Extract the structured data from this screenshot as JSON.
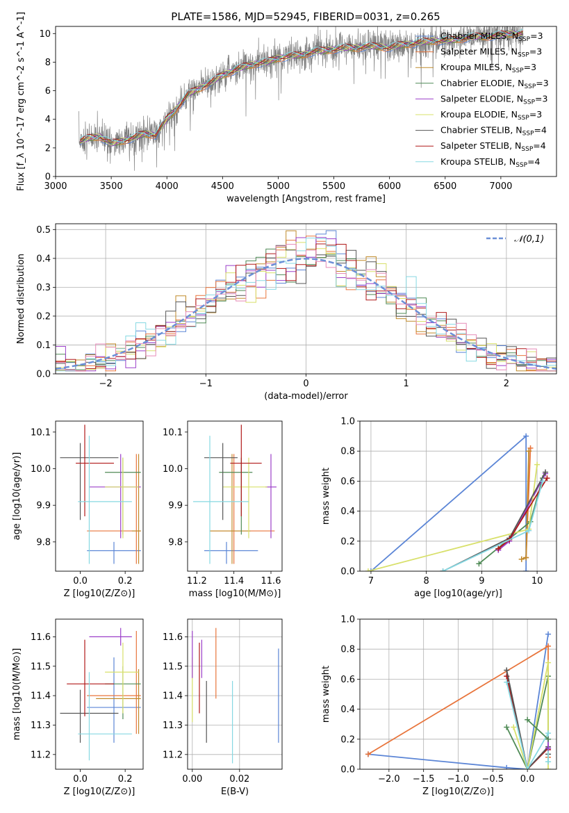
{
  "figure": {
    "title": "PLATE=1586, MJD=52945, FIBERID=0031, z=0.265"
  },
  "colors": {
    "Chabrier MILES": "#5b85d6",
    "Salpeter MILES": "#e8743b",
    "Kroupa MILES": "#c08a2a",
    "Chabrier ELODIE": "#4f8a55",
    "Salpeter ELODIE": "#9b3fc9",
    "Kroupa ELODIE": "#d8e06a",
    "Chabrier STELIB": "#555555",
    "Salpeter STELIB": "#b01818",
    "Kroupa STELIB": "#86d8e2",
    "Normal": "#6b8fd6",
    "Data": "#808080",
    "Pink": "#e68ab8"
  },
  "chart_data": [
    {
      "type": "line",
      "panel": "spectrum",
      "xlabel": "wavelength [Angstrom, rest frame]",
      "ylabel": "Flux [f_λ 10^-17 erg cm^-2 s^-1 A^-1]",
      "xlim": [
        3000,
        7500
      ],
      "ylim": [
        0,
        10.5
      ],
      "xticks": [
        3000,
        3500,
        4000,
        4500,
        5000,
        5500,
        6000,
        6500,
        7000
      ],
      "yticks": [
        0,
        2,
        4,
        6,
        8,
        10
      ],
      "legend": [
        "Chabrier MILES, N_SSP=3",
        "Salpeter MILES, N_SSP=3",
        "Kroupa MILES, N_SSP=3",
        "Chabrier ELODIE, N_SSP=3",
        "Salpeter ELODIE, N_SSP=3",
        "Kroupa ELODIE, N_SSP=3",
        "Chabrier STELIB, N_SSP=4",
        "Salpeter STELIB, N_SSP=4",
        "Kroupa STELIB, N_SSP=4"
      ],
      "legend_names": [
        "Chabrier MILES",
        "Salpeter MILES",
        "Kroupa MILES",
        "Chabrier ELODIE",
        "Salpeter ELODIE",
        "Kroupa ELODIE",
        "Chabrier STELIB",
        "Salpeter STELIB",
        "Kroupa STELIB"
      ],
      "legend_nssp": [
        "3",
        "3",
        "3",
        "3",
        "3",
        "3",
        "4",
        "4",
        "4"
      ],
      "legend_placement": "top-right",
      "continuum": {
        "x": [
          3200,
          3300,
          3400,
          3500,
          3600,
          3700,
          3800,
          3900,
          4000,
          4100,
          4200,
          4300,
          4400,
          4500,
          4600,
          4700,
          4800,
          4900,
          5000,
          5100,
          5200,
          5300,
          5400,
          5500,
          5600,
          5700,
          5800,
          5900,
          6000,
          6100,
          6200,
          6300,
          6400,
          6500,
          6600,
          6700,
          6800,
          6900,
          7000,
          7100,
          7200
        ],
        "y": [
          2.4,
          2.7,
          2.8,
          2.3,
          2.5,
          2.7,
          3.0,
          2.9,
          4.0,
          4.9,
          5.8,
          6.2,
          6.6,
          7.1,
          7.4,
          7.7,
          7.9,
          8.0,
          8.3,
          8.4,
          8.5,
          8.7,
          8.8,
          8.9,
          9.0,
          9.0,
          9.1,
          9.1,
          9.0,
          9.2,
          9.3,
          9.4,
          9.5,
          9.5,
          9.6,
          9.7,
          9.8,
          9.8,
          9.9,
          10.0,
          10.0
        ]
      }
    },
    {
      "type": "line",
      "panel": "residual distribution",
      "xlabel": "(data-model)/error",
      "ylabel": "Normed distribution",
      "xlim": [
        -2.5,
        2.5
      ],
      "ylim": [
        0,
        0.52
      ],
      "xticks": [
        -2,
        -1,
        0,
        1,
        2
      ],
      "yticks": [
        0.0,
        0.1,
        0.2,
        0.3,
        0.4,
        0.5
      ],
      "legend": [
        "𝒩(0,1)"
      ],
      "legend_placement": "top-right",
      "grid": true
    },
    {
      "type": "scatter",
      "panel": "age vs Z",
      "xlabel": "Z [log10(Z/Z⊙)]",
      "ylabel": "age  [log10(age/yr)]",
      "xlim": [
        -0.11,
        0.28
      ],
      "ylim": [
        9.72,
        10.13
      ],
      "xticks": [
        0.0,
        0.2
      ],
      "yticks": [
        9.8,
        9.9,
        10.0,
        10.1
      ],
      "points": [
        {
          "model": "Chabrier MILES",
          "x": 0.15,
          "y": 9.776,
          "xlo": 0.03,
          "xhi": 0.27,
          "ylo": 9.74,
          "yhi": 9.8
        },
        {
          "model": "Salpeter MILES",
          "x": 0.25,
          "y": 9.83,
          "xlo": 0.03,
          "xhi": 0.27,
          "ylo": 9.74,
          "yhi": 10.04
        },
        {
          "model": "Kroupa MILES",
          "x": 0.26,
          "y": 9.83,
          "xlo": 0.23,
          "xhi": 0.27,
          "ylo": 9.74,
          "yhi": 10.04
        },
        {
          "model": "Chabrier ELODIE",
          "x": 0.19,
          "y": 9.99,
          "xlo": 0.11,
          "xhi": 0.27,
          "ylo": 9.82,
          "yhi": 10.03
        },
        {
          "model": "Salpeter ELODIE",
          "x": 0.18,
          "y": 9.95,
          "xlo": 0.04,
          "xhi": 0.27,
          "ylo": 9.81,
          "yhi": 10.04
        },
        {
          "model": "Kroupa ELODIE",
          "x": 0.19,
          "y": 9.95,
          "xlo": 0.11,
          "xhi": 0.26,
          "ylo": 9.81,
          "yhi": 10.03
        },
        {
          "model": "Chabrier STELIB",
          "x": 0.0,
          "y": 10.03,
          "xlo": -0.09,
          "xhi": 0.17,
          "ylo": 9.86,
          "yhi": 10.07
        },
        {
          "model": "Salpeter STELIB",
          "x": 0.02,
          "y": 10.015,
          "xlo": -0.02,
          "xhi": 0.15,
          "ylo": 9.87,
          "yhi": 10.12
        },
        {
          "model": "Kroupa STELIB",
          "x": 0.04,
          "y": 9.91,
          "xlo": -0.01,
          "xhi": 0.23,
          "ylo": 9.74,
          "yhi": 10.09
        }
      ]
    },
    {
      "type": "scatter",
      "panel": "age vs mass",
      "xlabel": "mass [log10(M/M⊙)]",
      "ylabel": "",
      "xlim": [
        11.15,
        11.66
      ],
      "ylim": [
        9.72,
        10.13
      ],
      "xticks": [
        11.2,
        11.4,
        11.6
      ],
      "yticks": [
        9.8,
        9.9,
        10.0,
        10.1
      ],
      "points": [
        {
          "model": "Chabrier MILES",
          "x": 11.36,
          "y": 9.776,
          "xlo": 11.24,
          "xhi": 11.53,
          "ylo": 9.74,
          "yhi": 9.8
        },
        {
          "model": "Salpeter MILES",
          "x": 11.4,
          "y": 9.83,
          "xlo": 11.27,
          "xhi": 11.62,
          "ylo": 9.74,
          "yhi": 10.04
        },
        {
          "model": "Kroupa MILES",
          "x": 11.39,
          "y": 9.83,
          "xlo": 11.27,
          "xhi": 11.49,
          "ylo": 9.74,
          "yhi": 10.04
        },
        {
          "model": "Chabrier ELODIE",
          "x": 11.44,
          "y": 9.99,
          "xlo": 11.32,
          "xhi": 11.5,
          "ylo": 9.82,
          "yhi": 10.03
        },
        {
          "model": "Salpeter ELODIE",
          "x": 11.6,
          "y": 9.95,
          "xlo": 11.57,
          "xhi": 11.63,
          "ylo": 9.81,
          "yhi": 10.04
        },
        {
          "model": "Kroupa ELODIE",
          "x": 11.48,
          "y": 9.95,
          "xlo": 11.34,
          "xhi": 11.58,
          "ylo": 9.81,
          "yhi": 10.03
        },
        {
          "model": "Chabrier STELIB",
          "x": 11.34,
          "y": 10.03,
          "xlo": 11.24,
          "xhi": 11.42,
          "ylo": 9.86,
          "yhi": 10.07
        },
        {
          "model": "Salpeter STELIB",
          "x": 11.44,
          "y": 10.015,
          "xlo": 11.38,
          "xhi": 11.55,
          "ylo": 9.87,
          "yhi": 10.12
        },
        {
          "model": "Kroupa STELIB",
          "x": 11.27,
          "y": 9.91,
          "xlo": 11.18,
          "xhi": 11.48,
          "ylo": 9.74,
          "yhi": 10.09
        }
      ]
    },
    {
      "type": "line",
      "panel": "mass weight vs age",
      "xlabel": "age  [log10(age/yr)]",
      "ylabel": "mass weight",
      "xlim": [
        6.8,
        10.35
      ],
      "ylim": [
        0,
        1.0
      ],
      "xticks": [
        7,
        8,
        9,
        10
      ],
      "yticks": [
        0.0,
        0.2,
        0.4,
        0.6,
        0.8,
        1.0
      ],
      "grid": true,
      "series": [
        {
          "name": "Chabrier MILES",
          "x": [
            7.0,
            9.8,
            9.8
          ],
          "y": [
            0.0,
            0.9,
            0.0
          ]
        },
        {
          "name": "Salpeter MILES",
          "x": [
            9.72,
            9.8,
            9.88
          ],
          "y": [
            0.08,
            0.09,
            0.82
          ]
        },
        {
          "name": "Kroupa MILES",
          "x": [
            9.72,
            9.8,
            9.85
          ],
          "y": [
            0.08,
            0.09,
            0.8
          ]
        },
        {
          "name": "Chabrier ELODIE",
          "x": [
            8.95,
            9.88,
            10.1
          ],
          "y": [
            0.05,
            0.33,
            0.62
          ]
        },
        {
          "name": "Salpeter ELODIE",
          "x": [
            9.3,
            9.5,
            10.15
          ],
          "y": [
            0.14,
            0.2,
            0.65
          ]
        },
        {
          "name": "Kroupa ELODIE",
          "x": [
            6.95,
            9.85,
            10.0
          ],
          "y": [
            0.0,
            0.28,
            0.71
          ]
        },
        {
          "name": "Chabrier STELIB",
          "x": [
            8.3,
            9.5,
            10.15
          ],
          "y": [
            0.0,
            0.22,
            0.66
          ]
        },
        {
          "name": "Salpeter STELIB",
          "x": [
            9.3,
            9.5,
            10.18
          ],
          "y": [
            0.15,
            0.21,
            0.62
          ]
        },
        {
          "name": "Kroupa STELIB",
          "x": [
            8.3,
            9.85,
            10.1
          ],
          "y": [
            0.0,
            0.27,
            0.6
          ]
        }
      ]
    },
    {
      "type": "scatter",
      "panel": "mass vs Z",
      "xlabel": "Z [log10(Z/Z⊙)]",
      "ylabel": "mass [log10(M/M⊙)]",
      "xlim": [
        -0.11,
        0.28
      ],
      "ylim": [
        11.15,
        11.66
      ],
      "xticks": [
        0.0,
        0.2
      ],
      "yticks": [
        11.2,
        11.3,
        11.4,
        11.5,
        11.6
      ],
      "points": [
        {
          "model": "Chabrier MILES",
          "x": 0.15,
          "y": 11.36,
          "xlo": 0.03,
          "xhi": 0.27,
          "ylo": 11.24,
          "yhi": 11.53
        },
        {
          "model": "Salpeter MILES",
          "x": 0.25,
          "y": 11.4,
          "xlo": 0.03,
          "xhi": 0.27,
          "ylo": 11.27,
          "yhi": 11.62
        },
        {
          "model": "Kroupa MILES",
          "x": 0.26,
          "y": 11.39,
          "xlo": 0.07,
          "xhi": 0.27,
          "ylo": 11.27,
          "yhi": 11.49
        },
        {
          "model": "Chabrier ELODIE",
          "x": 0.19,
          "y": 11.44,
          "xlo": 0.11,
          "xhi": 0.27,
          "ylo": 11.32,
          "yhi": 11.5
        },
        {
          "model": "Salpeter ELODIE",
          "x": 0.18,
          "y": 11.6,
          "xlo": 0.04,
          "xhi": 0.23,
          "ylo": 11.57,
          "yhi": 11.63
        },
        {
          "model": "Kroupa ELODIE",
          "x": 0.19,
          "y": 11.48,
          "xlo": 0.11,
          "xhi": 0.26,
          "ylo": 11.34,
          "yhi": 11.58
        },
        {
          "model": "Chabrier STELIB",
          "x": 0.0,
          "y": 11.34,
          "xlo": -0.09,
          "xhi": 0.17,
          "ylo": 11.24,
          "yhi": 11.42
        },
        {
          "model": "Salpeter STELIB",
          "x": 0.02,
          "y": 11.44,
          "xlo": -0.06,
          "xhi": 0.15,
          "ylo": 11.33,
          "yhi": 11.59
        },
        {
          "model": "Kroupa STELIB",
          "x": 0.04,
          "y": 11.27,
          "xlo": -0.01,
          "xhi": 0.23,
          "ylo": 11.18,
          "yhi": 11.48
        }
      ]
    },
    {
      "type": "scatter",
      "panel": "mass vs E(B-V)",
      "xlabel": "E(B-V)",
      "ylabel": "",
      "xlim": [
        -0.002,
        0.038
      ],
      "ylim": [
        11.15,
        11.66
      ],
      "xticks": [
        0.0,
        0.02
      ],
      "yticks": [
        11.2,
        11.3,
        11.4,
        11.5,
        11.6
      ],
      "grid": true,
      "points": [
        {
          "model": "Chabrier MILES",
          "x": 0.0365,
          "y": 11.36,
          "xlo": 0.0365,
          "xhi": 0.0365,
          "ylo": 11.24,
          "yhi": 11.56
        },
        {
          "model": "Salpeter MILES",
          "x": 0.01,
          "y": 11.5,
          "xlo": 0.01,
          "xhi": 0.01,
          "ylo": 11.39,
          "yhi": 11.63
        },
        {
          "model": "Kroupa ELODIE",
          "x": 0.0,
          "y": 11.43,
          "xlo": 0.0,
          "xhi": 0.0,
          "ylo": 11.31,
          "yhi": 11.53
        },
        {
          "model": "Salpeter ELODIE",
          "x": 0.0,
          "y": 11.55,
          "xlo": 0.0,
          "xhi": 0.0,
          "ylo": 11.46,
          "yhi": 11.62
        },
        {
          "model": "Salpeter STELIB",
          "x": 0.003,
          "y": 11.45,
          "xlo": 0.003,
          "xhi": 0.003,
          "ylo": 11.34,
          "yhi": 11.58
        },
        {
          "model": "Chabrier STELIB",
          "x": 0.006,
          "y": 11.35,
          "xlo": 0.006,
          "xhi": 0.006,
          "ylo": 11.24,
          "yhi": 11.45
        },
        {
          "model": "Kroupa STELIB",
          "x": 0.017,
          "y": 11.3,
          "xlo": 0.017,
          "xhi": 0.017,
          "ylo": 11.17,
          "yhi": 11.45
        },
        {
          "model": "Salpeter ELODIE",
          "x": 0.004,
          "y": 11.55,
          "xlo": 0.004,
          "xhi": 0.004,
          "ylo": 11.46,
          "yhi": 11.59
        }
      ]
    },
    {
      "type": "line",
      "panel": "mass weight vs Z",
      "xlabel": "Z [log10(Z/Z⊙)]",
      "ylabel": "mass weight",
      "xlim": [
        -2.42,
        0.42
      ],
      "ylim": [
        0,
        1.0
      ],
      "xticks": [
        -2.0,
        -1.5,
        -1.0,
        -0.5,
        0.0
      ],
      "yticks": [
        0.0,
        0.2,
        0.4,
        0.6,
        0.8,
        1.0
      ],
      "grid": true,
      "series": [
        {
          "name": "Chabrier MILES",
          "x": [
            -2.3,
            -0.3,
            0.0,
            0.0,
            0.3
          ],
          "y": [
            0.1,
            0.01,
            0.0,
            0.0,
            0.9
          ]
        },
        {
          "name": "Salpeter MILES",
          "x": [
            -2.3,
            0.3,
            0.3
          ],
          "y": [
            0.1,
            0.82,
            0.08
          ]
        },
        {
          "name": "Chabrier ELODIE",
          "x": [
            -0.3,
            0.0,
            0.3,
            0.3
          ],
          "y": [
            0.28,
            0.0,
            0.62,
            0.05
          ]
        },
        {
          "name": "Salpeter STELIB",
          "x": [
            -0.3,
            0.0,
            0.3,
            0.3
          ],
          "y": [
            0.62,
            0.0,
            0.14,
            0.13
          ]
        },
        {
          "name": "Chabrier STELIB",
          "x": [
            -0.3,
            0.0,
            0.3,
            0.3
          ],
          "y": [
            0.66,
            0.0,
            0.15,
            0.1
          ]
        },
        {
          "name": "Kroupa ELODIE",
          "x": [
            -0.2,
            0.0,
            0.3,
            0.3
          ],
          "y": [
            0.28,
            0.0,
            0.71,
            0.0
          ]
        },
        {
          "name": "Kroupa STELIB",
          "x": [
            -0.3,
            0.0,
            0.3,
            0.3
          ],
          "y": [
            0.58,
            0.0,
            0.24,
            0.05
          ]
        },
        {
          "name": "Salpeter ELODIE",
          "x": [
            0.3,
            0.3
          ],
          "y": [
            0.14,
            0.2
          ]
        },
        {
          "name": "Chabrier ELODIE",
          "x": [
            0.0,
            0.3
          ],
          "y": [
            0.33,
            0.2
          ]
        }
      ]
    }
  ]
}
